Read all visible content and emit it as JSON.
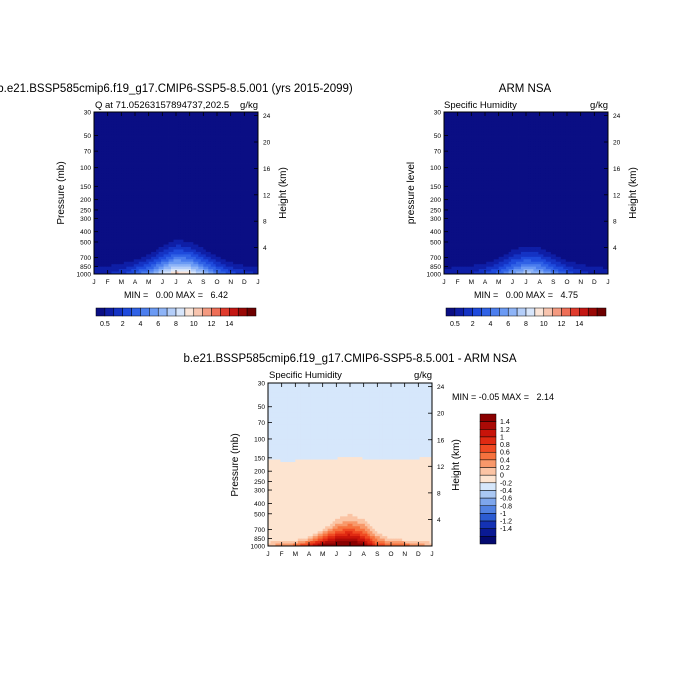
{
  "chart_data": [
    {
      "type": "heatmap",
      "title": "b.e21.BSSP585cmip6.f19_g17.CMIP6-SSP5-8.5.001 (yrs 2015-2099)",
      "subtitle_left": "Q at 71.05263157894737,202.5",
      "subtitle_right": "g/kg",
      "ylabel": "Pressure (mb)",
      "ylabel_right": "Height (km)",
      "x_ticks": [
        "J",
        "F",
        "M",
        "A",
        "M",
        "J",
        "J",
        "A",
        "S",
        "O",
        "N",
        "D",
        "J"
      ],
      "pressure_ticks": [
        "30",
        "50",
        "70",
        "100",
        "150",
        "200",
        "250",
        "300",
        "400",
        "500",
        "700",
        "850",
        "1000"
      ],
      "height_ticks": [
        "24",
        "20",
        "16",
        "12",
        "8",
        "4"
      ],
      "stats_text": "MIN =   0.00 MAX =   6.42",
      "min": 0.0,
      "max": 6.42,
      "colorbar_labels": [
        "0.5",
        "2",
        "4",
        "6",
        "8",
        "10",
        "12",
        "14"
      ],
      "seasonal_peak_level_mb": [
        840,
        820,
        790,
        730,
        650,
        540,
        470,
        490,
        570,
        680,
        770,
        820,
        840
      ],
      "surface_peak_value": [
        1.0,
        1.0,
        1.5,
        2.5,
        3.5,
        5.0,
        6.4,
        6.0,
        4.5,
        3.0,
        2.0,
        1.5,
        1.0
      ]
    },
    {
      "type": "heatmap",
      "title": "ARM NSA",
      "subtitle_left": "Specific Humidity",
      "subtitle_right": "g/kg",
      "ylabel": "pressure level",
      "ylabel_right": "Height (km)",
      "x_ticks": [
        "J",
        "F",
        "M",
        "A",
        "M",
        "J",
        "J",
        "A",
        "S",
        "O",
        "N",
        "D",
        "J"
      ],
      "pressure_ticks": [
        "30",
        "50",
        "70",
        "100",
        "150",
        "200",
        "250",
        "300",
        "400",
        "500",
        "700",
        "850",
        "1000"
      ],
      "height_ticks": [
        "24",
        "20",
        "16",
        "12",
        "8",
        "4"
      ],
      "stats_text": "MIN =   0.00 MAX =   4.75",
      "min": 0.0,
      "max": 4.75,
      "colorbar_labels": [
        "0.5",
        "2",
        "4",
        "6",
        "8",
        "10",
        "12",
        "14"
      ],
      "seasonal_peak_level_mb": [
        860,
        840,
        820,
        780,
        700,
        590,
        540,
        560,
        640,
        740,
        800,
        840,
        860
      ],
      "surface_peak_value": [
        0.8,
        0.8,
        1.0,
        1.8,
        2.5,
        3.8,
        4.75,
        4.4,
        3.2,
        2.2,
        1.4,
        1.0,
        0.8
      ]
    },
    {
      "type": "heatmap",
      "title": "b.e21.BSSP585cmip6.f19_g17.CMIP6-SSP5-8.5.001 - ARM NSA",
      "subtitle_left": "Specific Humidity",
      "subtitle_right": "g/kg",
      "ylabel": "Pressure (mb)",
      "ylabel_right": "Height (km)",
      "x_ticks": [
        "J",
        "F",
        "M",
        "A",
        "M",
        "J",
        "J",
        "A",
        "S",
        "O",
        "N",
        "D",
        "J"
      ],
      "pressure_ticks": [
        "30",
        "50",
        "70",
        "100",
        "150",
        "200",
        "250",
        "300",
        "400",
        "500",
        "700",
        "850",
        "1000"
      ],
      "height_ticks": [
        "24",
        "20",
        "16",
        "12",
        "8",
        "4"
      ],
      "stats_text": "MIN = -0.05 MAX =   2.14",
      "min": -0.05,
      "max": 2.14,
      "colorbar_labels": [
        "1.4",
        "1.2",
        "1",
        "0.8",
        "0.6",
        "0.4",
        "0.2",
        "0",
        "-0.2",
        "-0.4",
        "-0.6",
        "-0.8",
        "-1",
        "-1.2",
        "-1.4"
      ],
      "positive_boundary_level_mb": [
        155,
        160,
        160,
        158,
        155,
        152,
        150,
        152,
        160,
        158,
        155,
        152,
        150
      ],
      "surface_peak_value": [
        0.4,
        0.6,
        0.8,
        1.2,
        1.8,
        2.0,
        2.14,
        1.8,
        1.0,
        0.8,
        0.8,
        0.6,
        0.4
      ],
      "seasonal_peak_level_mb": [
        880,
        870,
        860,
        800,
        680,
        520,
        460,
        520,
        700,
        820,
        850,
        870,
        880
      ]
    }
  ],
  "colors": {
    "seq": [
      "#0a0e84",
      "#0e1ea6",
      "#1433c4",
      "#1e4adc",
      "#3062e6",
      "#4c7eee",
      "#6b9af4",
      "#8eb4f7",
      "#b4cef9",
      "#d8e6fb",
      "#fbe5d8",
      "#f8c4ae",
      "#f49a80",
      "#ee6e56",
      "#e03a2c",
      "#c41612",
      "#9a0806",
      "#6e0000"
    ],
    "diff": [
      "#8a0000",
      "#aa0a06",
      "#c8140a",
      "#e02a12",
      "#f04a22",
      "#f6723e",
      "#f8986a",
      "#fbc4a4",
      "#fde4d0",
      "#d6e7fb",
      "#aac8f4",
      "#7ea6ec",
      "#5282e2",
      "#2c5cd2",
      "#1432b4",
      "#0a1a94",
      "#040a70"
    ]
  }
}
